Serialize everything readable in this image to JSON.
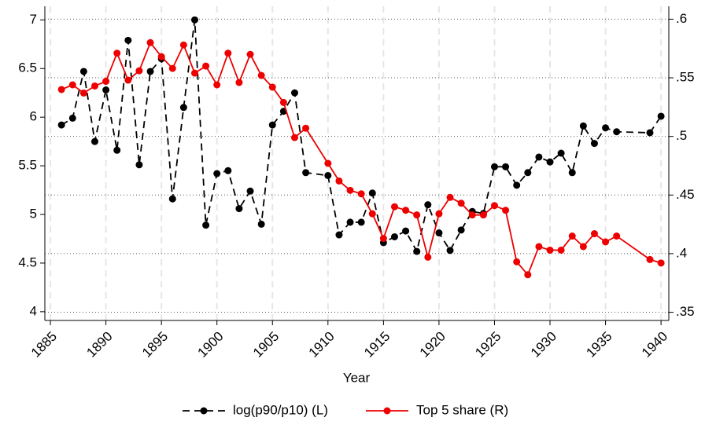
{
  "chart_data": {
    "type": "line",
    "x_label": "Year",
    "x": [
      1886,
      1887,
      1888,
      1889,
      1890,
      1891,
      1892,
      1893,
      1894,
      1895,
      1896,
      1897,
      1898,
      1899,
      1900,
      1901,
      1902,
      1903,
      1904,
      1905,
      1906,
      1907,
      1908,
      1910,
      1911,
      1912,
      1913,
      1914,
      1915,
      1916,
      1917,
      1918,
      1919,
      1920,
      1921,
      1922,
      1923,
      1924,
      1925,
      1926,
      1927,
      1928,
      1929,
      1930,
      1931,
      1932,
      1933,
      1934,
      1935,
      1936,
      1939,
      1940
    ],
    "series": [
      {
        "name": "log(p90/p10) (L)",
        "color": "#000000",
        "line_style": "dashed",
        "axis": "y",
        "values": [
          5.92,
          5.99,
          6.47,
          5.75,
          6.28,
          5.66,
          6.79,
          5.51,
          6.47,
          6.6,
          5.16,
          6.1,
          7.0,
          4.89,
          5.42,
          5.45,
          5.06,
          5.24,
          4.9,
          5.92,
          6.06,
          6.25,
          5.43,
          5.4,
          4.79,
          4.92,
          4.92,
          5.22,
          4.71,
          4.77,
          4.83,
          4.62,
          5.1,
          4.81,
          4.63,
          4.84,
          5.03,
          5.01,
          5.49,
          5.49,
          5.3,
          5.43,
          5.59,
          5.54,
          5.63,
          5.43,
          5.91,
          5.73,
          5.89,
          5.85,
          5.84,
          6.01
        ]
      },
      {
        "name": "Top 5 share (R)",
        "color": "#ee0000",
        "line_style": "solid",
        "axis": "y2",
        "values": [
          0.54,
          0.544,
          0.537,
          0.543,
          0.547,
          0.571,
          0.548,
          0.556,
          0.58,
          0.568,
          0.558,
          0.578,
          0.554,
          0.56,
          0.544,
          0.571,
          0.546,
          0.57,
          0.552,
          0.542,
          0.529,
          0.499,
          0.507,
          0.477,
          0.462,
          0.454,
          0.451,
          0.434,
          0.413,
          0.44,
          0.437,
          0.433,
          0.397,
          0.434,
          0.448,
          0.443,
          0.433,
          0.433,
          0.441,
          0.437,
          0.393,
          0.382,
          0.406,
          0.403,
          0.403,
          0.415,
          0.406,
          0.417,
          0.41,
          0.415,
          0.395,
          0.392
        ]
      }
    ],
    "xlim": [
      1884.5,
      1940.7
    ],
    "xticks": [
      1885,
      1890,
      1895,
      1900,
      1905,
      1910,
      1915,
      1920,
      1925,
      1930,
      1935,
      1940
    ],
    "ylim": [
      3.91,
      7.14
    ],
    "yticks": [
      4,
      4.5,
      5,
      5.5,
      6,
      6.5,
      7
    ],
    "y2lim": [
      0.343,
      0.611
    ],
    "y2ticks": [
      {
        "value": 0.35,
        "label": ".35"
      },
      {
        "value": 0.4,
        "label": ".4"
      },
      {
        "value": 0.45,
        "label": ".45"
      },
      {
        "value": 0.5,
        "label": ".5"
      },
      {
        "value": 0.55,
        "label": ".55"
      },
      {
        "value": 0.6,
        "label": ".6"
      }
    ],
    "grid": true,
    "legend_position": "bottom"
  }
}
